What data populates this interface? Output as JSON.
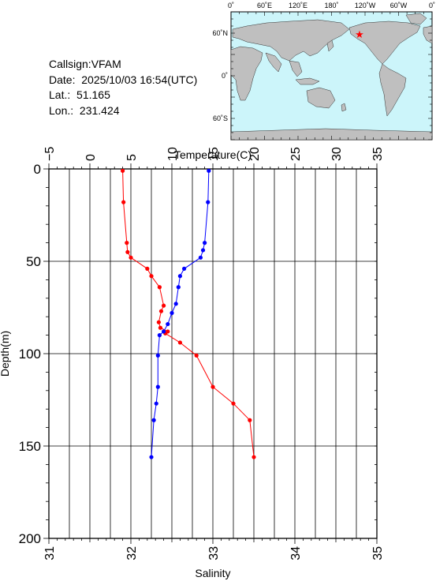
{
  "station": {
    "callsign": "Callsign:VFAM",
    "date": "Date:  2025/10/03 16:54(UTC)",
    "lat_label": "Lat.:",
    "lat": "51.165",
    "lon_label": "Lon.:",
    "lon": "231.424"
  },
  "map": {
    "lon_ticks": [
      "0˚",
      "60˚E",
      "120˚E",
      "180˚",
      "120˚W",
      "60˚W",
      "0˚"
    ],
    "lat_ticks": [
      "60˚N",
      "0˚",
      "60˚S"
    ],
    "ocean_color": "#ccf5fa",
    "land_color": "#bfbfbf",
    "marker_color": "#ff0000",
    "marker_icon": "star-icon"
  },
  "chart_data": {
    "type": "line",
    "temperature_axis": {
      "label": "Temperature(C)",
      "range": [
        -5,
        35
      ],
      "ticks": [
        "−5",
        "0",
        "5",
        "10",
        "15",
        "20",
        "25",
        "30",
        "35"
      ]
    },
    "salinity_axis": {
      "label": "Salinity",
      "range": [
        31,
        35
      ],
      "ticks": [
        "31",
        "32",
        "33",
        "34",
        "35"
      ]
    },
    "depth_axis": {
      "label": "Depth(m)",
      "range": [
        0,
        200
      ],
      "ticks": [
        "0",
        "50",
        "100",
        "150",
        "200"
      ]
    },
    "grid": true,
    "series": [
      {
        "color": "#ff0000",
        "axis": "temperature",
        "points": [
          {
            "depth": 1,
            "value": 4.0
          },
          {
            "depth": 18,
            "value": 4.1
          },
          {
            "depth": 40,
            "value": 4.5
          },
          {
            "depth": 45,
            "value": 4.6
          },
          {
            "depth": 48,
            "value": 5.0
          },
          {
            "depth": 54,
            "value": 7.0
          },
          {
            "depth": 58,
            "value": 7.5
          },
          {
            "depth": 64,
            "value": 8.5
          },
          {
            "depth": 74,
            "value": 9.0
          },
          {
            "depth": 77,
            "value": 8.7
          },
          {
            "depth": 83,
            "value": 8.4
          },
          {
            "depth": 86,
            "value": 8.6
          },
          {
            "depth": 88,
            "value": 9.5
          },
          {
            "depth": 89,
            "value": 9.2
          },
          {
            "depth": 94,
            "value": 11.0
          },
          {
            "depth": 101,
            "value": 13.0
          },
          {
            "depth": 118,
            "value": 15.0
          },
          {
            "depth": 127,
            "value": 17.5
          },
          {
            "depth": 136,
            "value": 19.5
          },
          {
            "depth": 156,
            "value": 20.0
          }
        ]
      },
      {
        "color": "#0000ff",
        "axis": "salinity",
        "points": [
          {
            "depth": 1,
            "value": 32.95
          },
          {
            "depth": 18,
            "value": 32.94
          },
          {
            "depth": 40,
            "value": 32.9
          },
          {
            "depth": 44,
            "value": 32.88
          },
          {
            "depth": 48,
            "value": 32.85
          },
          {
            "depth": 54,
            "value": 32.65
          },
          {
            "depth": 58,
            "value": 32.6
          },
          {
            "depth": 64,
            "value": 32.58
          },
          {
            "depth": 73,
            "value": 32.55
          },
          {
            "depth": 78,
            "value": 32.5
          },
          {
            "depth": 84,
            "value": 32.45
          },
          {
            "depth": 88,
            "value": 32.4
          },
          {
            "depth": 90,
            "value": 32.35
          },
          {
            "depth": 101,
            "value": 32.33
          },
          {
            "depth": 118,
            "value": 32.33
          },
          {
            "depth": 127,
            "value": 32.31
          },
          {
            "depth": 136,
            "value": 32.28
          },
          {
            "depth": 156,
            "value": 32.25
          }
        ]
      }
    ]
  }
}
